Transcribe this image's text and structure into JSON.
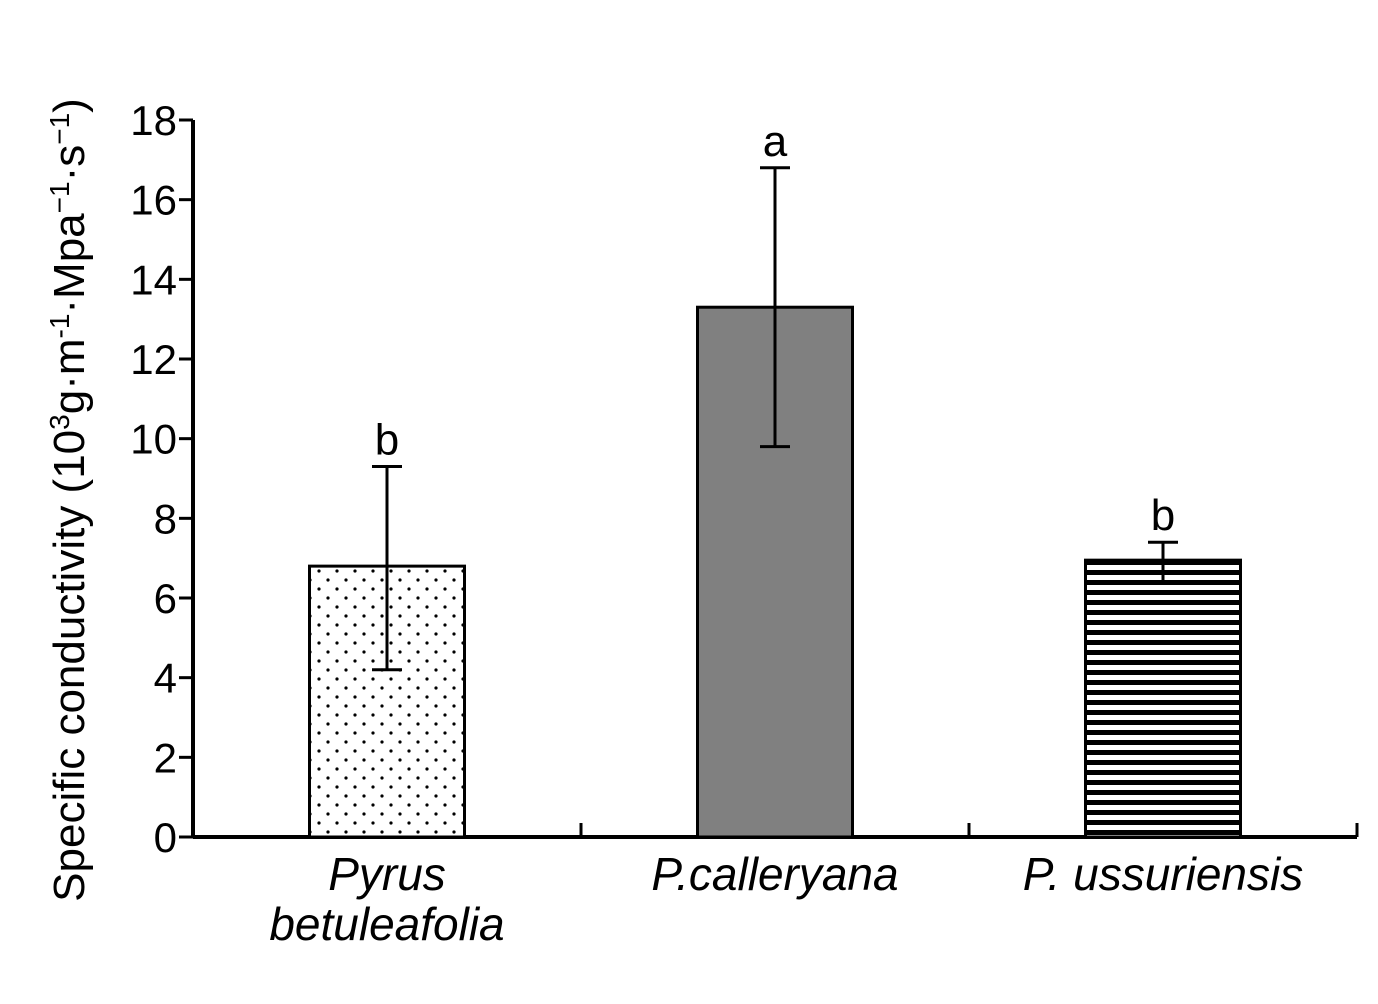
{
  "chart_data": {
    "type": "bar",
    "title": "",
    "xlabel": "",
    "ylabel": {
      "text": "Specific conductivity (10",
      "sup1": "3",
      "mid1": "g·m",
      "sup2": "-1",
      "mid2": "·Mpa",
      "sup3": "−1",
      "mid3": "·s",
      "sup4": "−1",
      "end": ")"
    },
    "ylim": [
      0,
      18
    ],
    "yticks": [
      0,
      2,
      4,
      6,
      8,
      10,
      12,
      14,
      16,
      18
    ],
    "grid": false,
    "categories": [
      {
        "lines": [
          "Pyrus",
          "betuleafolia"
        ]
      },
      {
        "lines": [
          "P.calleryana"
        ]
      },
      {
        "lines": [
          "P. ussuriensis"
        ]
      }
    ],
    "values": [
      6.8,
      13.3,
      6.95
    ],
    "error_upper": [
      9.3,
      16.8,
      7.4
    ],
    "error_lower": [
      4.2,
      9.8,
      6.4
    ],
    "significance": [
      "b",
      "a",
      "b"
    ],
    "fills": [
      "dots",
      "solid-gray",
      "horizontal-stripes"
    ],
    "colors": {
      "solid": "#808080",
      "outline": "#000000"
    }
  }
}
